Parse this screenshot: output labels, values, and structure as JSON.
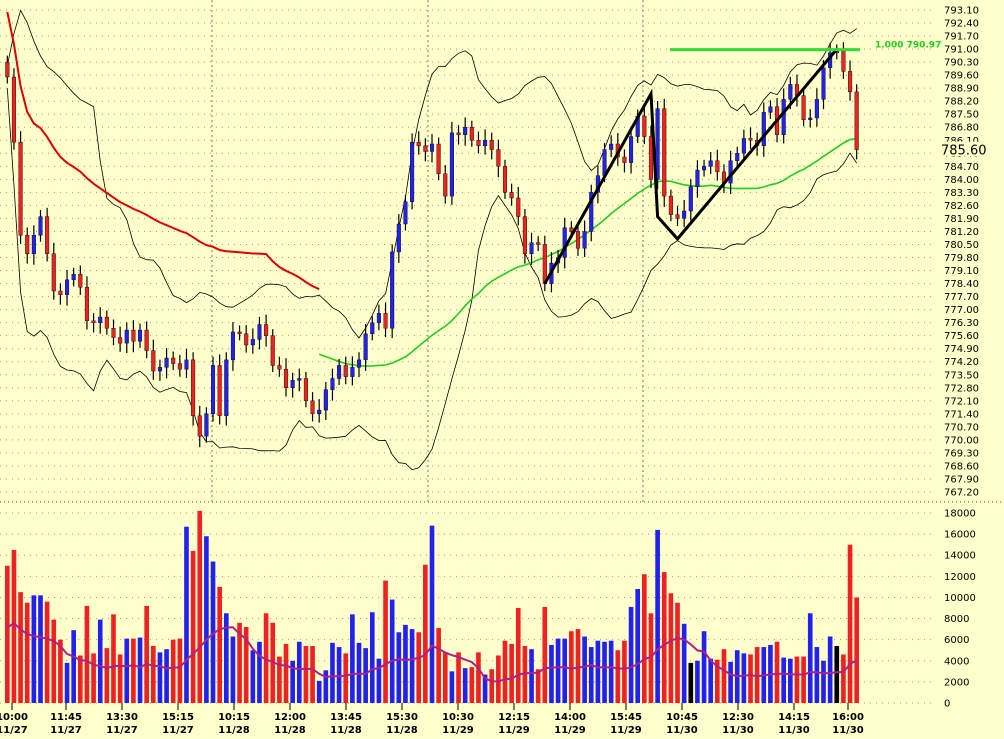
{
  "chart_data": {
    "type": "candlestick",
    "colors": {
      "background": "#ffffcc",
      "up": "#2222ee",
      "down": "#ee2222",
      "neutral": "#000000",
      "ma_red": "#dd0000",
      "ma_green": "#22cc22",
      "level": "#33dd33",
      "grid": "#999999"
    },
    "price_ylim": [
      767.2,
      793.1
    ],
    "price_ticks": [
      "793.10",
      "792.40",
      "791.70",
      "791.00",
      "790.30",
      "789.60",
      "788.90",
      "788.20",
      "787.50",
      "786.80",
      "786.10",
      "785.40",
      "784.70",
      "784.00",
      "783.30",
      "782.60",
      "781.90",
      "781.20",
      "780.50",
      "779.80",
      "779.10",
      "778.40",
      "777.70",
      "777.00",
      "776.30",
      "775.60",
      "774.90",
      "774.20",
      "773.50",
      "772.80",
      "772.10",
      "771.40",
      "770.70",
      "770.00",
      "769.30",
      "768.60",
      "767.90",
      "767.20"
    ],
    "last_price": "785.60",
    "level_line": {
      "label": "1.000 790.97",
      "value": 790.97
    },
    "volume_ylim": [
      0,
      18000
    ],
    "volume_ticks": [
      "18000",
      "16000",
      "14000",
      "12000",
      "10000",
      "8000",
      "6000",
      "4000",
      "2000",
      "0"
    ],
    "time_labels": [
      {
        "time": "10:00",
        "date": "11/27"
      },
      {
        "time": "11:45",
        "date": "11/27"
      },
      {
        "time": "13:30",
        "date": "11/27"
      },
      {
        "time": "15:15",
        "date": "11/27"
      },
      {
        "time": "10:15",
        "date": "11/28"
      },
      {
        "time": "12:00",
        "date": "11/28"
      },
      {
        "time": "13:45",
        "date": "11/28"
      },
      {
        "time": "15:30",
        "date": "11/28"
      },
      {
        "time": "10:30",
        "date": "11/29"
      },
      {
        "time": "12:15",
        "date": "11/29"
      },
      {
        "time": "14:00",
        "date": "11/29"
      },
      {
        "time": "15:45",
        "date": "11/29"
      },
      {
        "time": "10:45",
        "date": "11/30"
      },
      {
        "time": "12:30",
        "date": "11/30"
      },
      {
        "time": "14:15",
        "date": "11/30"
      },
      {
        "time": "16:00",
        "date": "11/30"
      }
    ],
    "closes": [
      789.5,
      786,
      781,
      780,
      781,
      782,
      780,
      778,
      777.8,
      778.6,
      778.9,
      778.2,
      776.4,
      776.3,
      776.6,
      776,
      775.5,
      775.2,
      775.9,
      775.3,
      775.9,
      774.8,
      773.7,
      773.9,
      774.4,
      774.1,
      773.8,
      774.3,
      771.3,
      770.2,
      771.4,
      774,
      771.3,
      774.3,
      775.8,
      775.7,
      775.1,
      775.4,
      776.2,
      775.6,
      774,
      773.8,
      772.8,
      773.2,
      773.3,
      772.1,
      771.4,
      771.6,
      772.7,
      773.3,
      774,
      773.4,
      773.9,
      774.3,
      775.7,
      776.3,
      776.8,
      776,
      780.1,
      781.6,
      782.8,
      786,
      785.8,
      785.5,
      785.9,
      784.3,
      783.1,
      786.5,
      786.4,
      786.8,
      786.1,
      785.8,
      786.1,
      785.6,
      784.7,
      783.3,
      783,
      782,
      780,
      780.6,
      780.5,
      778.4,
      779.5,
      779.8,
      781.4,
      781.2,
      780.3,
      781.2,
      783.3,
      784.2,
      785.6,
      785.9,
      785.2,
      784.9,
      786.3,
      787.4,
      786.3,
      784,
      787.8,
      783.1,
      782.1,
      781.9,
      782.3,
      783.6,
      784.5,
      784.7,
      785,
      784.4,
      783.8,
      785,
      785.4,
      786.2,
      786.1,
      785.8,
      787.6,
      787.9,
      786.4,
      788.3,
      789.1,
      788.5,
      787.2,
      787.3,
      788.3,
      790,
      790.8,
      790.9,
      789.8,
      788.7,
      785.6
    ],
    "volumes": [
      13000,
      14500,
      10500,
      9500,
      10200,
      10200,
      9600,
      7900,
      6000,
      3800,
      6900,
      4500,
      9200,
      4700,
      7900,
      5200,
      8400,
      4600,
      6100,
      6100,
      6200,
      9200,
      5400,
      4800,
      5100,
      6000,
      6100,
      16700,
      14400,
      18200,
      15800,
      13400,
      11000,
      8500,
      6300,
      7600,
      7200,
      5000,
      5800,
      8500,
      7600,
      4400,
      5600,
      4000,
      5800,
      5400,
      5400,
      2100,
      3100,
      5700,
      5300,
      4700,
      8400,
      5700,
      5200,
      8600,
      4200,
      11600,
      9800,
      6700,
      7400,
      7000,
      6700,
      13100,
      16800,
      7100,
      4800,
      3000,
      4800,
      3300,
      3400,
      4800,
      2700,
      3200,
      4500,
      5900,
      5600,
      9000,
      5400,
      5100,
      3200,
      9100,
      5500,
      6100,
      6100,
      6800,
      7000,
      6300,
      5300,
      5900,
      5800,
      5900,
      5000,
      5900,
      9100,
      10800,
      12200,
      8500,
      16400,
      12400,
      10400,
      9500,
      7500,
      3800,
      4000,
      6800,
      4200,
      4100,
      5100,
      3900,
      5000,
      4700,
      4600,
      5300,
      5300,
      5500,
      5800,
      4300,
      4200,
      4400,
      4400,
      8500,
      5300,
      4000,
      6300,
      5400,
      4600,
      15000,
      10000
    ],
    "volume_neutral_indices": [
      103,
      125
    ]
  }
}
